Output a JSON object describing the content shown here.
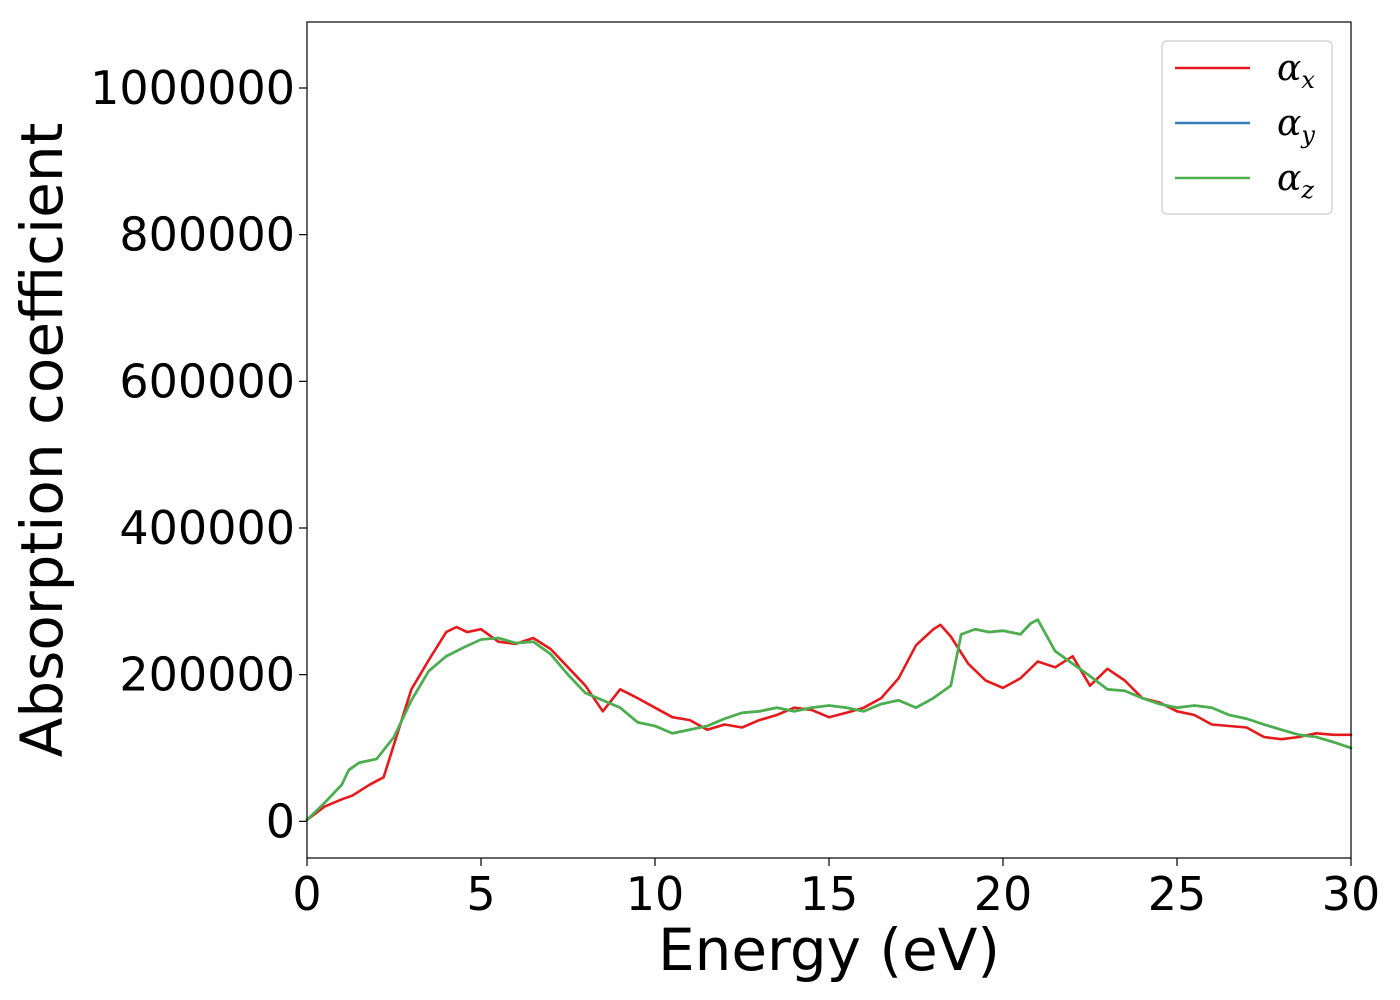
{
  "chart_data": {
    "type": "line",
    "title": "",
    "xlabel": "Energy (eV)",
    "ylabel": "Absorption coefficient",
    "xlim": [
      0,
      30
    ],
    "ylim": [
      -50000,
      1090000
    ],
    "xticks": [
      0,
      5,
      10,
      15,
      20,
      25,
      30
    ],
    "yticks": [
      0,
      200000,
      400000,
      600000,
      800000,
      1000000
    ],
    "xtick_labels": [
      "0",
      "5",
      "10",
      "15",
      "20",
      "25",
      "30"
    ],
    "ytick_labels": [
      "0",
      "200000",
      "400000",
      "600000",
      "800000",
      "1000000"
    ],
    "grid": false,
    "legend_position": "top-right",
    "series": [
      {
        "name": "α",
        "subscript": "x",
        "color": "#e41a1c",
        "x": [
          0,
          0.5,
          1,
          1.3,
          1.8,
          2.2,
          2.6,
          3,
          3.5,
          4,
          4.3,
          4.6,
          5,
          5.5,
          6,
          6.5,
          7,
          7.5,
          8,
          8.5,
          9,
          9.5,
          10,
          10.5,
          11,
          11.5,
          12,
          12.5,
          13,
          13.5,
          14,
          14.5,
          15,
          15.5,
          16,
          16.5,
          17,
          17.5,
          18,
          18.2,
          18.5,
          19,
          19.5,
          20,
          20.5,
          21,
          21.5,
          22,
          22.5,
          23,
          23.5,
          24,
          24.5,
          25,
          25.5,
          26,
          26.5,
          27,
          27.5,
          28,
          28.5,
          29,
          29.5,
          30
        ],
        "y": [
          2000,
          20000,
          30000,
          35000,
          50000,
          60000,
          120000,
          180000,
          220000,
          258000,
          265000,
          258000,
          262000,
          245000,
          242000,
          250000,
          235000,
          210000,
          185000,
          150000,
          180000,
          168000,
          155000,
          142000,
          138000,
          125000,
          132000,
          128000,
          138000,
          145000,
          155000,
          152000,
          142000,
          148000,
          155000,
          168000,
          195000,
          240000,
          262000,
          268000,
          252000,
          215000,
          192000,
          182000,
          195000,
          218000,
          210000,
          225000,
          185000,
          208000,
          192000,
          168000,
          162000,
          150000,
          145000,
          132000,
          130000,
          128000,
          115000,
          112000,
          115000,
          120000,
          118000,
          118000
        ]
      },
      {
        "name": "α",
        "subscript": "y",
        "color": "#377eb8",
        "x": [
          0,
          0.5,
          1,
          1.2,
          1.5,
          2,
          2.5,
          3,
          3.5,
          4,
          4.5,
          5,
          5.5,
          6,
          6.5,
          7,
          7.5,
          8,
          8.5,
          9,
          9.5,
          10,
          10.5,
          11,
          11.5,
          12,
          12.5,
          13,
          13.5,
          14,
          14.5,
          15,
          15.5,
          16,
          16.5,
          17,
          17.5,
          18,
          18.5,
          18.8,
          19.2,
          19.6,
          20,
          20.5,
          20.8,
          21,
          21.5,
          22,
          22.5,
          23,
          23.5,
          24,
          24.5,
          25,
          25.5,
          26,
          26.5,
          27,
          27.5,
          28,
          28.5,
          29,
          29.5,
          30
        ],
        "y": [
          2000,
          25000,
          50000,
          70000,
          80000,
          85000,
          115000,
          165000,
          205000,
          225000,
          237000,
          248000,
          250000,
          243000,
          245000,
          228000,
          200000,
          175000,
          165000,
          155000,
          135000,
          130000,
          120000,
          125000,
          130000,
          140000,
          148000,
          150000,
          155000,
          150000,
          155000,
          158000,
          155000,
          150000,
          160000,
          165000,
          155000,
          168000,
          185000,
          255000,
          262000,
          258000,
          260000,
          255000,
          270000,
          275000,
          232000,
          215000,
          198000,
          180000,
          178000,
          168000,
          160000,
          155000,
          158000,
          155000,
          145000,
          140000,
          132000,
          125000,
          118000,
          115000,
          108000,
          100000
        ]
      },
      {
        "name": "α",
        "subscript": "z",
        "color": "#4daf4a",
        "x": [
          0,
          0.5,
          1,
          1.2,
          1.5,
          2,
          2.5,
          3,
          3.5,
          4,
          4.5,
          5,
          5.5,
          6,
          6.5,
          7,
          7.5,
          8,
          8.5,
          9,
          9.5,
          10,
          10.5,
          11,
          11.5,
          12,
          12.5,
          13,
          13.5,
          14,
          14.5,
          15,
          15.5,
          16,
          16.5,
          17,
          17.5,
          18,
          18.5,
          18.8,
          19.2,
          19.6,
          20,
          20.5,
          20.8,
          21,
          21.5,
          22,
          22.5,
          23,
          23.5,
          24,
          24.5,
          25,
          25.5,
          26,
          26.5,
          27,
          27.5,
          28,
          28.5,
          29,
          29.5,
          30
        ],
        "y": [
          2000,
          25000,
          50000,
          70000,
          80000,
          85000,
          115000,
          165000,
          205000,
          225000,
          237000,
          248000,
          250000,
          243000,
          245000,
          228000,
          200000,
          175000,
          165000,
          155000,
          135000,
          130000,
          120000,
          125000,
          130000,
          140000,
          148000,
          150000,
          155000,
          150000,
          155000,
          158000,
          155000,
          150000,
          160000,
          165000,
          155000,
          168000,
          185000,
          255000,
          262000,
          258000,
          260000,
          255000,
          270000,
          275000,
          232000,
          215000,
          198000,
          180000,
          178000,
          168000,
          160000,
          155000,
          158000,
          155000,
          145000,
          140000,
          132000,
          125000,
          118000,
          115000,
          108000,
          100000
        ]
      }
    ]
  }
}
